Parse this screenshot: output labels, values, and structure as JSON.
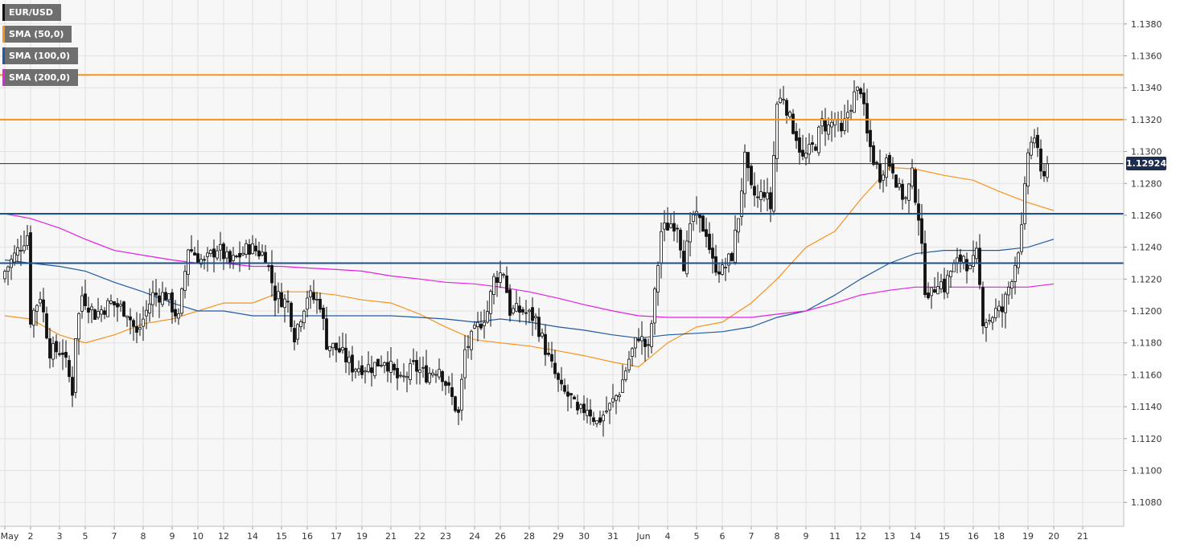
{
  "legend": [
    {
      "label": "EUR/USD",
      "color": "#111111"
    },
    {
      "label": "SMA (50,0)",
      "color": "#f7931e"
    },
    {
      "label": "SMA (100,0)",
      "color": "#1f5aa6"
    },
    {
      "label": "SMA (200,0)",
      "color": "#e61ee6"
    }
  ],
  "current_price": "1.12924",
  "chart_data": {
    "type": "candlestick",
    "symbol": "EUR/USD",
    "ylim": [
      1.1065,
      1.1395
    ],
    "y_ticks": [
      "1.1080",
      "1.1100",
      "1.1120",
      "1.1140",
      "1.1160",
      "1.1180",
      "1.1200",
      "1.1220",
      "1.1240",
      "1.1260",
      "1.1280",
      "1.1300",
      "1.1320",
      "1.1340",
      "1.1360",
      "1.1380"
    ],
    "x_ticks": [
      {
        "label": "May",
        "i": 0
      },
      {
        "label": "2",
        "i": 8
      },
      {
        "label": "3",
        "i": 17
      },
      {
        "label": "5",
        "i": 25
      },
      {
        "label": "7",
        "i": 34
      },
      {
        "label": "8",
        "i": 43
      },
      {
        "label": "9",
        "i": 52
      },
      {
        "label": "10",
        "i": 60
      },
      {
        "label": "12",
        "i": 68
      },
      {
        "label": "14",
        "i": 77
      },
      {
        "label": "15",
        "i": 86
      },
      {
        "label": "16",
        "i": 94
      },
      {
        "label": "17",
        "i": 103
      },
      {
        "label": "19",
        "i": 111
      },
      {
        "label": "21",
        "i": 120
      },
      {
        "label": "22",
        "i": 129
      },
      {
        "label": "23",
        "i": 137
      },
      {
        "label": "24",
        "i": 146
      },
      {
        "label": "26",
        "i": 154
      },
      {
        "label": "28",
        "i": 163
      },
      {
        "label": "29",
        "i": 172
      },
      {
        "label": "30",
        "i": 180
      },
      {
        "label": "31",
        "i": 189
      },
      {
        "label": "Jun",
        "i": 197
      },
      {
        "label": "4",
        "i": 206
      },
      {
        "label": "5",
        "i": 215
      },
      {
        "label": "6",
        "i": 223
      },
      {
        "label": "7",
        "i": 232
      },
      {
        "label": "8",
        "i": 240
      },
      {
        "label": "9",
        "i": 249
      },
      {
        "label": "11",
        "i": 258
      },
      {
        "label": "12",
        "i": 266
      },
      {
        "label": "13",
        "i": 275
      },
      {
        "label": "14",
        "i": 283
      },
      {
        "label": "15",
        "i": 292
      },
      {
        "label": "16",
        "i": 301
      },
      {
        "label": "18",
        "i": 309
      },
      {
        "label": "19",
        "i": 318
      },
      {
        "label": "20",
        "i": 326
      },
      {
        "label": "21",
        "i": 335
      }
    ],
    "close_anchors": [
      [
        0,
        1.1225
      ],
      [
        4,
        1.1238
      ],
      [
        7,
        1.1248
      ],
      [
        8,
        1.1195
      ],
      [
        11,
        1.121
      ],
      [
        14,
        1.1175
      ],
      [
        18,
        1.1175
      ],
      [
        21,
        1.115
      ],
      [
        22,
        1.1185
      ],
      [
        24,
        1.121
      ],
      [
        28,
        1.1198
      ],
      [
        33,
        1.1205
      ],
      [
        38,
        1.12
      ],
      [
        41,
        1.1185
      ],
      [
        46,
        1.121
      ],
      [
        50,
        1.121
      ],
      [
        54,
        1.1195
      ],
      [
        57,
        1.124
      ],
      [
        62,
        1.123
      ],
      [
        66,
        1.124
      ],
      [
        70,
        1.123
      ],
      [
        76,
        1.124
      ],
      [
        81,
        1.1235
      ],
      [
        84,
        1.121
      ],
      [
        88,
        1.1205
      ],
      [
        90,
        1.1185
      ],
      [
        94,
        1.121
      ],
      [
        98,
        1.1205
      ],
      [
        100,
        1.118
      ],
      [
        104,
        1.1175
      ],
      [
        108,
        1.1165
      ],
      [
        114,
        1.1165
      ],
      [
        118,
        1.117
      ],
      [
        123,
        1.1155
      ],
      [
        127,
        1.1165
      ],
      [
        131,
        1.116
      ],
      [
        135,
        1.1165
      ],
      [
        139,
        1.1145
      ],
      [
        141,
        1.1135
      ],
      [
        143,
        1.1175
      ],
      [
        147,
        1.119
      ],
      [
        150,
        1.12
      ],
      [
        152,
        1.122
      ],
      [
        155,
        1.1225
      ],
      [
        157,
        1.12
      ],
      [
        161,
        1.12
      ],
      [
        165,
        1.1195
      ],
      [
        169,
        1.117
      ],
      [
        173,
        1.115
      ],
      [
        176,
        1.1145
      ],
      [
        178,
        1.1135
      ],
      [
        181,
        1.114
      ],
      [
        184,
        1.113
      ],
      [
        188,
        1.114
      ],
      [
        191,
        1.115
      ],
      [
        194,
        1.117
      ],
      [
        197,
        1.1185
      ],
      [
        200,
        1.1175
      ],
      [
        202,
        1.121
      ],
      [
        204,
        1.125
      ],
      [
        207,
        1.1255
      ],
      [
        209,
        1.1255
      ],
      [
        211,
        1.123
      ],
      [
        214,
        1.126
      ],
      [
        218,
        1.125
      ],
      [
        220,
        1.123
      ],
      [
        223,
        1.1225
      ],
      [
        226,
        1.1235
      ],
      [
        228,
        1.126
      ],
      [
        230,
        1.1295
      ],
      [
        232,
        1.1275
      ],
      [
        234,
        1.127
      ],
      [
        236,
        1.1275
      ],
      [
        238,
        1.1265
      ],
      [
        240,
        1.133
      ],
      [
        242,
        1.1335
      ],
      [
        244,
        1.132
      ],
      [
        246,
        1.131
      ],
      [
        248,
        1.1295
      ],
      [
        250,
        1.13
      ],
      [
        252,
        1.1305
      ],
      [
        254,
        1.1318
      ],
      [
        256,
        1.1315
      ],
      [
        258,
        1.132
      ],
      [
        260,
        1.131
      ],
      [
        262,
        1.1325
      ],
      [
        264,
        1.1335
      ],
      [
        266,
        1.134
      ],
      [
        268,
        1.131
      ],
      [
        270,
        1.1295
      ],
      [
        272,
        1.1285
      ],
      [
        274,
        1.1295
      ],
      [
        276,
        1.129
      ],
      [
        278,
        1.1275
      ],
      [
        280,
        1.127
      ],
      [
        282,
        1.1285
      ],
      [
        284,
        1.126
      ],
      [
        286,
        1.1215
      ],
      [
        288,
        1.121
      ],
      [
        290,
        1.122
      ],
      [
        292,
        1.1215
      ],
      [
        294,
        1.1225
      ],
      [
        296,
        1.123
      ],
      [
        298,
        1.1235
      ],
      [
        300,
        1.1225
      ],
      [
        302,
        1.1235
      ],
      [
        304,
        1.1195
      ],
      [
        306,
        1.1195
      ],
      [
        308,
        1.12
      ],
      [
        310,
        1.12
      ],
      [
        312,
        1.1215
      ],
      [
        314,
        1.123
      ],
      [
        316,
        1.125
      ],
      [
        318,
        1.13
      ],
      [
        320,
        1.131
      ],
      [
        322,
        1.1285
      ],
      [
        324,
        1.1292
      ]
    ],
    "sma_50": [
      [
        0,
        1.1197
      ],
      [
        8,
        1.1195
      ],
      [
        17,
        1.1185
      ],
      [
        25,
        1.118
      ],
      [
        34,
        1.1185
      ],
      [
        43,
        1.1192
      ],
      [
        52,
        1.1195
      ],
      [
        60,
        1.12
      ],
      [
        68,
        1.1205
      ],
      [
        77,
        1.1205
      ],
      [
        86,
        1.1212
      ],
      [
        94,
        1.1212
      ],
      [
        103,
        1.121
      ],
      [
        111,
        1.1207
      ],
      [
        120,
        1.1205
      ],
      [
        129,
        1.1198
      ],
      [
        137,
        1.119
      ],
      [
        146,
        1.1182
      ],
      [
        154,
        1.118
      ],
      [
        163,
        1.1178
      ],
      [
        172,
        1.1175
      ],
      [
        180,
        1.1172
      ],
      [
        189,
        1.1168
      ],
      [
        197,
        1.1165
      ],
      [
        206,
        1.118
      ],
      [
        215,
        1.119
      ],
      [
        223,
        1.1193
      ],
      [
        232,
        1.1205
      ],
      [
        240,
        1.122
      ],
      [
        249,
        1.124
      ],
      [
        258,
        1.125
      ],
      [
        266,
        1.127
      ],
      [
        275,
        1.129
      ],
      [
        283,
        1.1289
      ],
      [
        292,
        1.1285
      ],
      [
        301,
        1.1282
      ],
      [
        309,
        1.1275
      ],
      [
        318,
        1.1268
      ],
      [
        326,
        1.1263
      ]
    ],
    "sma_100": [
      [
        0,
        1.1232
      ],
      [
        8,
        1.123
      ],
      [
        17,
        1.1228
      ],
      [
        25,
        1.1225
      ],
      [
        34,
        1.1218
      ],
      [
        43,
        1.1212
      ],
      [
        52,
        1.1205
      ],
      [
        60,
        1.12
      ],
      [
        68,
        1.12
      ],
      [
        77,
        1.1197
      ],
      [
        86,
        1.1197
      ],
      [
        94,
        1.1197
      ],
      [
        103,
        1.1197
      ],
      [
        111,
        1.1197
      ],
      [
        120,
        1.1197
      ],
      [
        129,
        1.1196
      ],
      [
        137,
        1.1195
      ],
      [
        146,
        1.1193
      ],
      [
        154,
        1.1195
      ],
      [
        163,
        1.1193
      ],
      [
        172,
        1.119
      ],
      [
        180,
        1.1188
      ],
      [
        189,
        1.1185
      ],
      [
        197,
        1.1183
      ],
      [
        206,
        1.1185
      ],
      [
        215,
        1.1186
      ],
      [
        223,
        1.1187
      ],
      [
        232,
        1.119
      ],
      [
        240,
        1.1196
      ],
      [
        249,
        1.12
      ],
      [
        258,
        1.121
      ],
      [
        266,
        1.122
      ],
      [
        275,
        1.123
      ],
      [
        283,
        1.1236
      ],
      [
        292,
        1.1238
      ],
      [
        301,
        1.1238
      ],
      [
        309,
        1.1238
      ],
      [
        318,
        1.124
      ],
      [
        326,
        1.1245
      ]
    ],
    "sma_200": [
      [
        0,
        1.1261
      ],
      [
        8,
        1.1258
      ],
      [
        17,
        1.1252
      ],
      [
        25,
        1.1245
      ],
      [
        34,
        1.1238
      ],
      [
        43,
        1.1235
      ],
      [
        52,
        1.1232
      ],
      [
        60,
        1.123
      ],
      [
        68,
        1.123
      ],
      [
        77,
        1.1228
      ],
      [
        86,
        1.1228
      ],
      [
        94,
        1.1227
      ],
      [
        103,
        1.1226
      ],
      [
        111,
        1.1225
      ],
      [
        120,
        1.1222
      ],
      [
        129,
        1.122
      ],
      [
        137,
        1.1218
      ],
      [
        146,
        1.1217
      ],
      [
        154,
        1.1215
      ],
      [
        163,
        1.1212
      ],
      [
        172,
        1.1208
      ],
      [
        180,
        1.1204
      ],
      [
        189,
        1.12
      ],
      [
        197,
        1.1197
      ],
      [
        206,
        1.1196
      ],
      [
        215,
        1.1196
      ],
      [
        223,
        1.1196
      ],
      [
        232,
        1.1196
      ],
      [
        240,
        1.1198
      ],
      [
        249,
        1.12
      ],
      [
        258,
        1.1205
      ],
      [
        266,
        1.121
      ],
      [
        275,
        1.1213
      ],
      [
        283,
        1.1215
      ],
      [
        292,
        1.1215
      ],
      [
        301,
        1.1215
      ],
      [
        309,
        1.1215
      ],
      [
        318,
        1.1215
      ],
      [
        326,
        1.1217
      ]
    ],
    "horizontal_lines": [
      {
        "value": 1.1348,
        "color": "#f7931e"
      },
      {
        "value": 1.132,
        "color": "#f7931e"
      },
      {
        "value": 1.12924,
        "color": "#1c2d4f"
      },
      {
        "value": 1.1261,
        "color": "#1f4f8f"
      },
      {
        "value": 1.123,
        "color": "#1f4f8f"
      }
    ]
  }
}
